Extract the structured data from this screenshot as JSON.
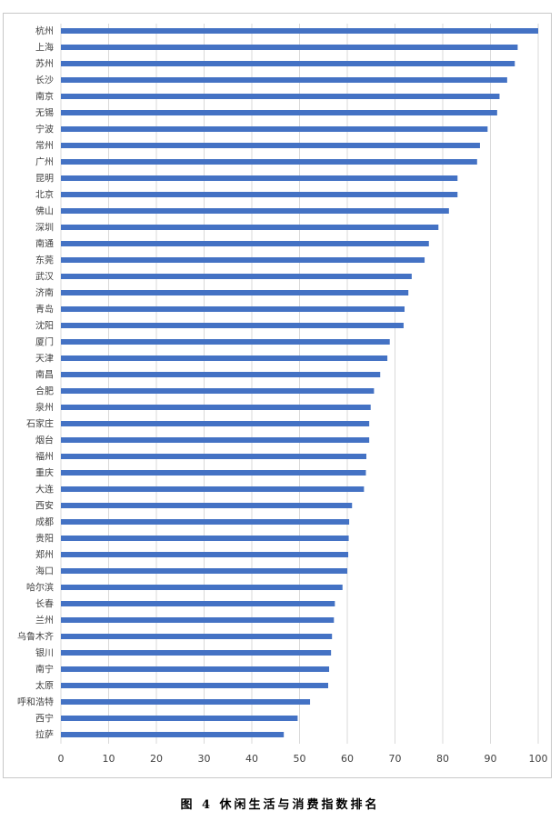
{
  "caption": "图 4    休闲生活与消费指数排名",
  "chart_data": {
    "type": "bar",
    "orientation": "horizontal",
    "categories": [
      "杭州",
      "上海",
      "苏州",
      "长沙",
      "南京",
      "无锡",
      "宁波",
      "常州",
      "广州",
      "昆明",
      "北京",
      "佛山",
      "深圳",
      "南通",
      "东莞",
      "武汉",
      "济南",
      "青岛",
      "沈阳",
      "厦门",
      "天津",
      "南昌",
      "合肥",
      "泉州",
      "石家庄",
      "烟台",
      "福州",
      "重庆",
      "大连",
      "西安",
      "成都",
      "贵阳",
      "郑州",
      "海口",
      "哈尔滨",
      "长春",
      "兰州",
      "乌鲁木齐",
      "银川",
      "南宁",
      "太原",
      "呼和浩特",
      "西宁",
      "拉萨"
    ],
    "values": [
      100,
      95.7,
      95.1,
      93.5,
      91.9,
      91.4,
      89.4,
      87.8,
      87.2,
      83.1,
      83.1,
      81.3,
      79.1,
      77.1,
      76.2,
      73.5,
      72.8,
      72.0,
      71.8,
      68.9,
      68.4,
      66.9,
      65.6,
      64.9,
      64.6,
      64.6,
      64.0,
      63.9,
      63.5,
      61.0,
      60.4,
      60.3,
      60.2,
      60.0,
      59.0,
      57.4,
      57.2,
      56.8,
      56.6,
      56.2,
      56.0,
      52.2,
      49.6,
      46.7
    ],
    "xlim": [
      0,
      100
    ],
    "xticks": [
      "0",
      "10",
      "20",
      "30",
      "40",
      "50",
      "60",
      "70",
      "80",
      "90",
      "100"
    ],
    "grid": true,
    "bar_color": "#4472c4",
    "grid_color": "#d9d9d9"
  }
}
